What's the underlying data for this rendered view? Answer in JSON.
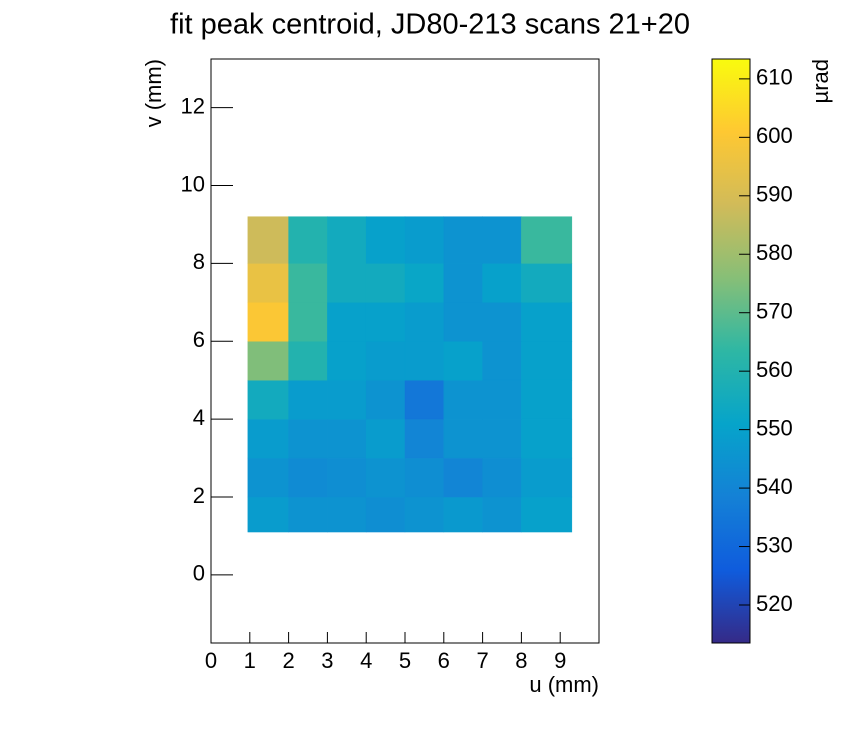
{
  "chart_data": {
    "type": "heatmap",
    "title": "fit peak centroid, JD80-213 scans 21+20",
    "x_label": "u (mm)",
    "y_label": "v (mm)",
    "z_label": "µrad",
    "xlim": [
      0,
      10
    ],
    "ylim": [
      -1.75,
      13.25
    ],
    "xticks": [
      0,
      1,
      2,
      3,
      4,
      5,
      6,
      7,
      8,
      9
    ],
    "yticks": [
      0,
      2,
      4,
      6,
      8,
      10,
      12
    ],
    "zlim": [
      513.5,
      613.4
    ],
    "zticks": [
      520,
      530,
      540,
      550,
      560,
      570,
      580,
      590,
      600,
      610
    ],
    "colormap": [
      "#352a87",
      "#0f5cdd",
      "#1481d6",
      "#06a4ca",
      "#2eb7a4",
      "#87bf77",
      "#d1bb59",
      "#fec832",
      "#f9fb0e"
    ],
    "xbins": [
      0.95,
      2,
      3,
      4,
      5,
      6,
      7,
      8,
      9.3
    ],
    "ybins": [
      1.1,
      2,
      3,
      4,
      5,
      6,
      7,
      8,
      9.2
    ],
    "z": [
      [
        548,
        545,
        545,
        543,
        545,
        547,
        545,
        550
      ],
      [
        545,
        542,
        543,
        545,
        543,
        540,
        543,
        548
      ],
      [
        548,
        545,
        545,
        548,
        540,
        545,
        545,
        550
      ],
      [
        555,
        548,
        548,
        545,
        535,
        545,
        545,
        550
      ],
      [
        575,
        560,
        550,
        548,
        548,
        550,
        545,
        550
      ],
      [
        600,
        565,
        550,
        550,
        548,
        545,
        545,
        550
      ],
      [
        595,
        565,
        555,
        555,
        552,
        545,
        550,
        555
      ],
      [
        588,
        560,
        555,
        550,
        548,
        545,
        545,
        565
      ]
    ]
  }
}
